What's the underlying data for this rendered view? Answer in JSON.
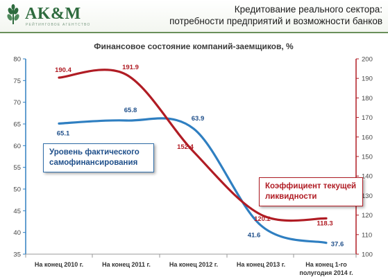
{
  "header": {
    "logo_text": "AK&M",
    "logo_subtext": "РЕЙТИНГОВОЕ АГЕНТСТВО",
    "title_line1": "Кредитование реального сектора:",
    "title_line2": "потребности предприятий и возможности банков"
  },
  "annotations": {
    "blue_line1": "Уровень фактического",
    "blue_line2": "самофинансирования",
    "red_line1": "Коэффициент текущей",
    "red_line2": "ликвидности"
  },
  "colors": {
    "blue": "#2f7fc1",
    "red": "#b01c24",
    "brand": "#2e6b3e"
  },
  "chart_data": {
    "type": "line",
    "title": "Финансовое состояние компаний-заемщиков, %",
    "categories": [
      "На конец 2010 г.",
      "На конец 2011 г.",
      "На конец 2012 г.",
      "На конец 2013 г.",
      "На конец 1-го полугодия 2014 г."
    ],
    "series": [
      {
        "name": "Уровень фактического самофинансирования",
        "axis": "left",
        "values": [
          65.1,
          65.8,
          63.9,
          41.6,
          37.6
        ],
        "labels": [
          "65.1",
          "65.8",
          "63.9",
          "41.6",
          "37.6"
        ]
      },
      {
        "name": "Коэффициент текущей ликвидности",
        "axis": "right",
        "values": [
          190.4,
          191.9,
          152.4,
          120.2,
          118.3
        ],
        "labels": [
          "190.4",
          "191.9",
          "152.4",
          "120.2",
          "118.3"
        ]
      }
    ],
    "y_left": {
      "min": 35,
      "max": 80,
      "ticks": [
        "35",
        "40",
        "45",
        "50",
        "55",
        "60",
        "65",
        "70",
        "75",
        "80"
      ]
    },
    "y_right": {
      "min": 100,
      "max": 200,
      "ticks": [
        "100",
        "110",
        "120",
        "130",
        "140",
        "150",
        "160",
        "170",
        "180",
        "190",
        "200"
      ]
    },
    "grid": false,
    "legend": "none"
  }
}
